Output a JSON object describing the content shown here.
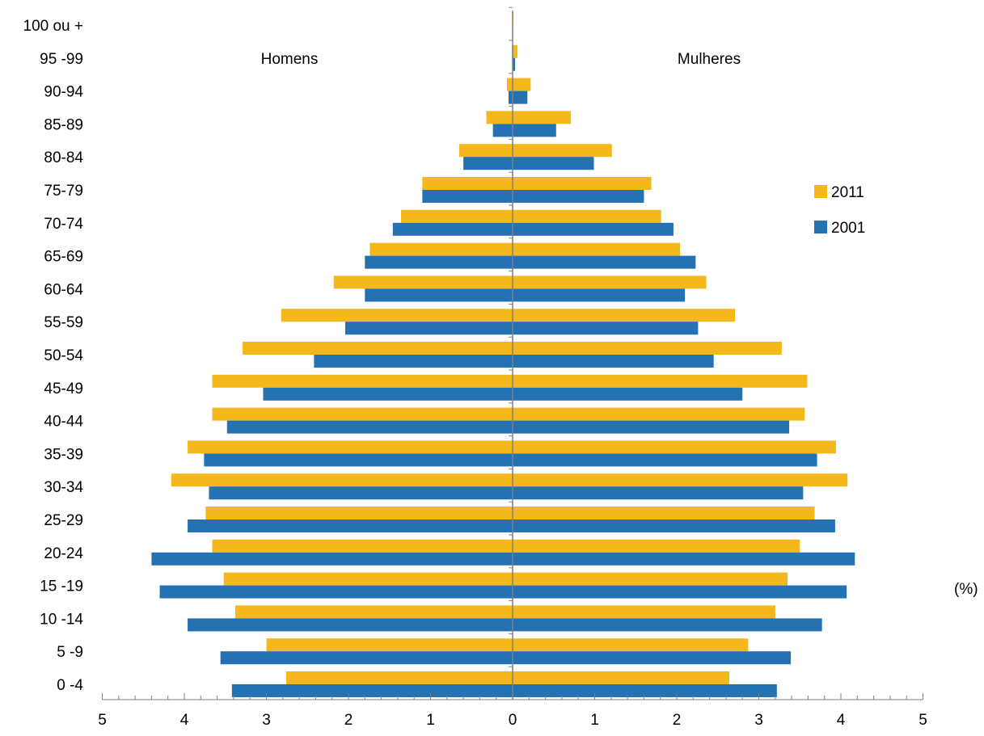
{
  "chart_data": {
    "type": "bar",
    "orientation": "horizontal",
    "categories": [
      "0 -4",
      "5 -9",
      "10 -14",
      "15 -19",
      "20-24",
      "25-29",
      "30-34",
      "35-39",
      "40-44",
      "45-49",
      "50-54",
      "55-59",
      "60-64",
      "65-69",
      "70-74",
      "75-79",
      "80-84",
      "85-89",
      "90-94",
      "95 -99",
      "100 ou +"
    ],
    "group_labels": {
      "left": "Homens",
      "right": "Mulheres"
    },
    "x_unit": "(%)",
    "x_ticks": [
      "5",
      "4",
      "3",
      "2",
      "1",
      "0",
      "1",
      "2",
      "3",
      "4",
      "5"
    ],
    "xlim": [
      -5,
      5
    ],
    "legend_position": "right",
    "colors": {
      "2011": "#F5B81C",
      "2001": "#2472B4",
      "axis": "#808080"
    },
    "series": [
      {
        "name": "2011",
        "men": [
          2.76,
          3.0,
          3.38,
          3.52,
          3.66,
          3.74,
          4.16,
          3.96,
          3.66,
          3.66,
          3.29,
          2.82,
          2.18,
          1.74,
          1.36,
          1.1,
          0.65,
          0.32,
          0.07,
          0.01,
          0.0
        ],
        "women": [
          2.64,
          2.87,
          3.2,
          3.35,
          3.5,
          3.68,
          4.08,
          3.94,
          3.56,
          3.59,
          3.28,
          2.71,
          2.36,
          2.04,
          1.81,
          1.69,
          1.21,
          0.71,
          0.22,
          0.06,
          0.01
        ]
      },
      {
        "name": "2001",
        "men": [
          3.42,
          3.56,
          3.96,
          4.3,
          4.4,
          3.96,
          3.7,
          3.76,
          3.48,
          3.04,
          2.42,
          2.04,
          1.8,
          1.8,
          1.46,
          1.1,
          0.6,
          0.24,
          0.05,
          0.0,
          0.0
        ],
        "women": [
          3.22,
          3.39,
          3.77,
          4.07,
          4.17,
          3.93,
          3.54,
          3.71,
          3.37,
          2.8,
          2.45,
          2.26,
          2.1,
          2.23,
          1.96,
          1.6,
          0.99,
          0.53,
          0.18,
          0.03,
          0.0
        ]
      }
    ]
  }
}
